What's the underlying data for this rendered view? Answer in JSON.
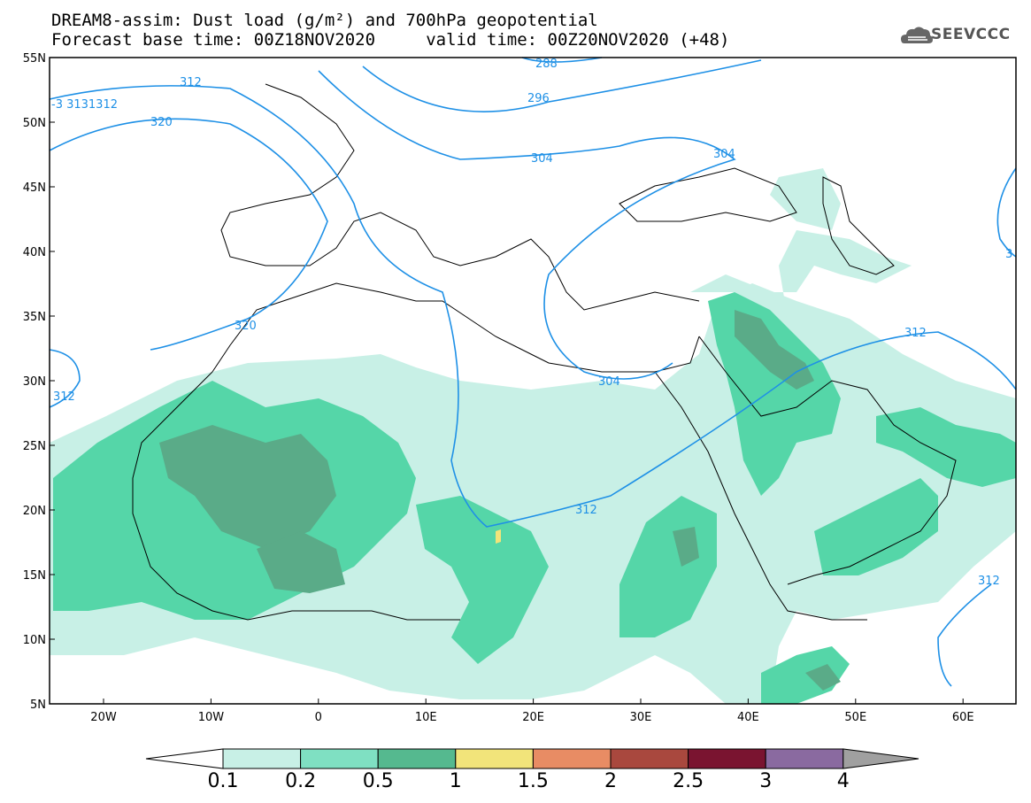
{
  "header": {
    "title_line1": "DREAM8-assim: Dust load (g/m²) and 700hPa geopotential",
    "title_line2": "Forecast base time: 00Z18NOV2020     valid time: 00Z20NOV2020 (+48)",
    "logo_text": "SEEVCCC"
  },
  "map": {
    "lat_labels": [
      "55N",
      "50N",
      "45N",
      "40N",
      "35N",
      "30N",
      "25N",
      "20N",
      "15N",
      "10N",
      "5N"
    ],
    "lon_labels": [
      "20W",
      "10W",
      "0",
      "10E",
      "20E",
      "30E",
      "40E",
      "50E",
      "60E"
    ],
    "contour_labels": [
      "288",
      "296",
      "304",
      "312",
      "320",
      "-3 3131312",
      "312",
      "304",
      "304",
      "312",
      "312",
      "312",
      "320",
      "3"
    ]
  },
  "colorbar": {
    "labels": [
      "0.1",
      "0.2",
      "0.5",
      "1",
      "1.5",
      "2",
      "2.5",
      "3",
      "4"
    ],
    "colors": [
      "#c8f0e6",
      "#7fe0c2",
      "#55b98f",
      "#f2e47a",
      "#e88c64",
      "#a9483e",
      "#7a1430",
      "#8a6aa0",
      "#a0a0a0"
    ]
  },
  "colors": {
    "contour": "#1e90e6",
    "land_edge": "#000000",
    "dust_low": "#c8f0e6",
    "dust_mid": "#55d6a8",
    "dust_high": "#5aab88",
    "dust_yellow": "#f2e47a"
  }
}
